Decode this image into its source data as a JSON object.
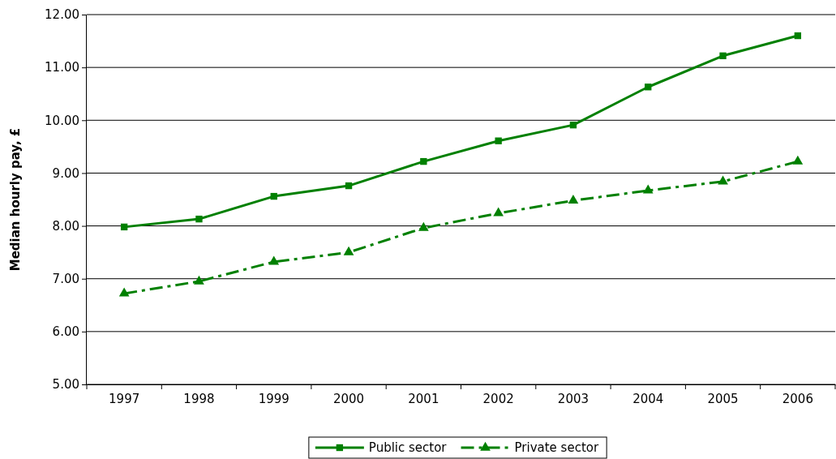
{
  "chart_data": {
    "type": "line",
    "ylabel": "Median hourly pay, £",
    "categories": [
      "1997",
      "1998",
      "1999",
      "2000",
      "2001",
      "2002",
      "2003",
      "2004",
      "2005",
      "2006"
    ],
    "series": [
      {
        "name": "Public sector",
        "color": "#008000",
        "marker": "square",
        "line_style": "solid",
        "values": [
          7.98,
          8.13,
          8.56,
          8.76,
          9.22,
          9.61,
          9.91,
          10.63,
          11.22,
          11.6
        ]
      },
      {
        "name": "Private sector",
        "color": "#008000",
        "marker": "triangle",
        "line_style": "dashed",
        "values": [
          6.72,
          6.95,
          7.32,
          7.5,
          7.96,
          8.24,
          8.48,
          8.67,
          8.84,
          9.22
        ]
      }
    ],
    "ylim": [
      5,
      12
    ],
    "yticks": [
      {
        "value": 5,
        "label": "5.00"
      },
      {
        "value": 6,
        "label": "6.00"
      },
      {
        "value": 7,
        "label": "7.00"
      },
      {
        "value": 8,
        "label": "8.00"
      },
      {
        "value": 9,
        "label": "9.00"
      },
      {
        "value": 10,
        "label": "10.00"
      },
      {
        "value": 11,
        "label": "11.00"
      },
      {
        "value": 12,
        "label": "12.00"
      }
    ],
    "grid": "y",
    "legend": "bottom"
  }
}
